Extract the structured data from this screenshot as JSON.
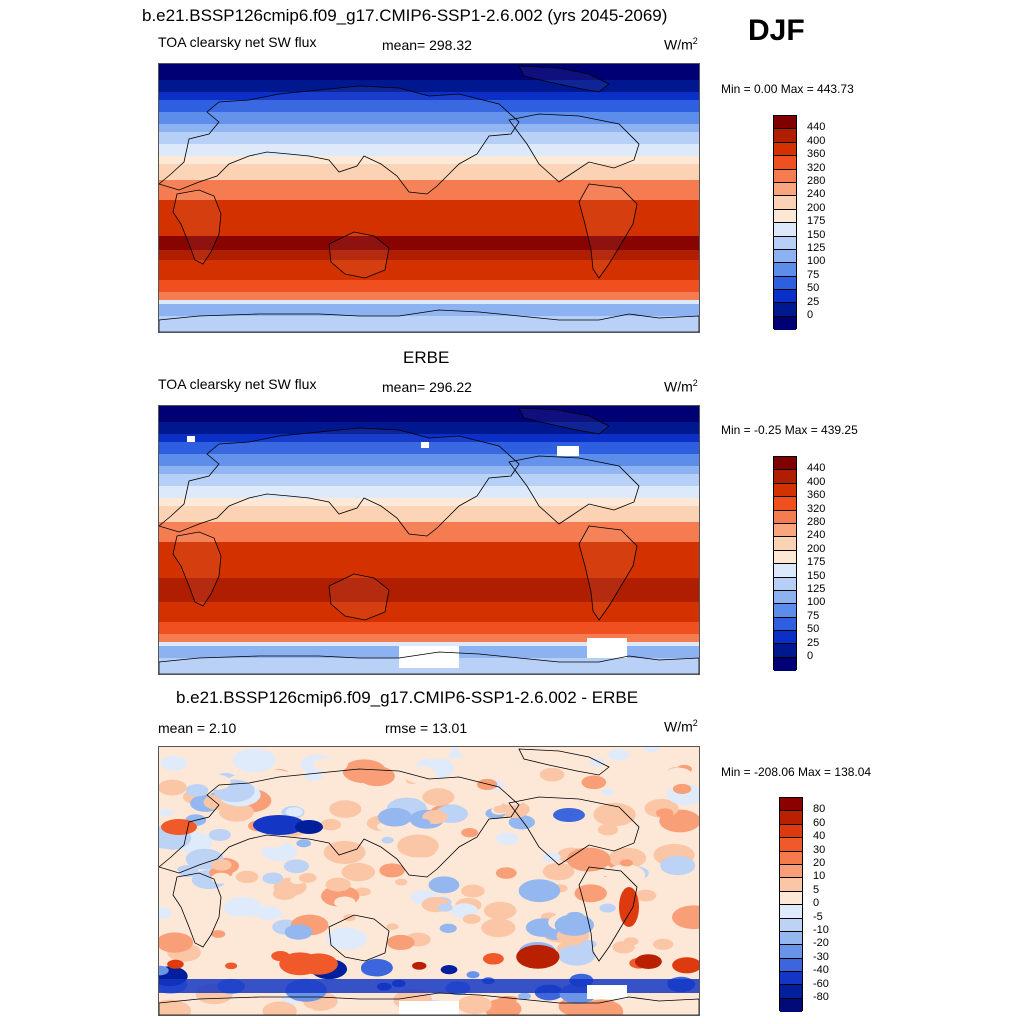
{
  "season": "DJF",
  "unit_sup": "2",
  "unit_base": "W/m",
  "panels": [
    {
      "title": "b.e21.BSSP126cmip6.f09_g17.CMIP6-SSP1-2.6.002 (yrs 2045-2069)",
      "left_label": "TOA clearsky net SW flux",
      "center_label": "mean= 298.32",
      "minmax": "Min =   0.00 Max = 443.73",
      "colorbar_labels": [
        "440",
        "400",
        "360",
        "320",
        "280",
        "240",
        "200",
        "175",
        "150",
        "125",
        "100",
        "75",
        "50",
        "25",
        "0"
      ]
    },
    {
      "title": "ERBE",
      "left_label": "TOA clearsky net SW flux",
      "center_label": "mean= 296.22",
      "minmax": "Min =  -0.25 Max = 439.25",
      "colorbar_labels": [
        "440",
        "400",
        "360",
        "320",
        "280",
        "240",
        "200",
        "175",
        "150",
        "125",
        "100",
        "75",
        "50",
        "25",
        "0"
      ]
    },
    {
      "title": "b.e21.BSSP126cmip6.f09_g17.CMIP6-SSP1-2.6.002 - ERBE",
      "left_label": "mean =   2.10",
      "center_label": "rmse =  13.01",
      "minmax": "Min = -208.06 Max = 138.04",
      "colorbar_labels": [
        "80",
        "60",
        "40",
        "30",
        "20",
        "10",
        "5",
        "0",
        "-5",
        "-10",
        "-20",
        "-30",
        "-40",
        "-60",
        "-80"
      ]
    }
  ],
  "colors": {
    "flux_scale": [
      "#800000",
      "#b01e00",
      "#d33200",
      "#f05020",
      "#f57c50",
      "#f9a67e",
      "#fcd2b4",
      "#fde8d6",
      "#dce9fa",
      "#b5cff7",
      "#8cb2f2",
      "#5c8deb",
      "#2e5fe0",
      "#0a30c8",
      "#00188f",
      "#000075"
    ],
    "diff_scale": [
      "#8c0000",
      "#b82000",
      "#de3a10",
      "#f05a2a",
      "#f57a4c",
      "#f89f78",
      "#fbc6a6",
      "#fde8d8",
      "#dfeafb",
      "#bcd3f6",
      "#94b7f0",
      "#6a94e8",
      "#3e66dc",
      "#1436c4",
      "#001f9c",
      "#000b78"
    ]
  }
}
